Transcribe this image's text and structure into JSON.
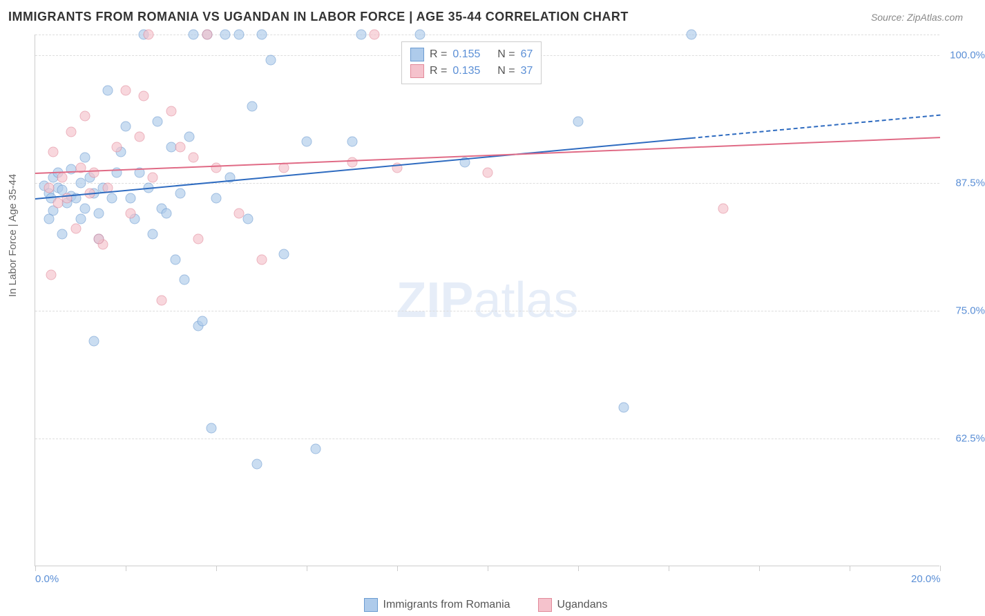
{
  "title": "IMMIGRANTS FROM ROMANIA VS UGANDAN IN LABOR FORCE | AGE 35-44 CORRELATION CHART",
  "source_prefix": "Source: ",
  "source_name": "ZipAtlas.com",
  "ylabel": "In Labor Force | Age 35-44",
  "watermark_bold": "ZIP",
  "watermark_rest": "atlas",
  "chart": {
    "type": "scatter",
    "xlim": [
      0,
      20
    ],
    "ylim": [
      50,
      102
    ],
    "xtick_labels": [
      {
        "x": 0,
        "label": "0.0%"
      },
      {
        "x": 20,
        "label": "20.0%"
      }
    ],
    "xtick_positions": [
      0,
      2,
      4,
      6,
      8,
      10,
      12,
      14,
      16,
      18,
      20
    ],
    "ytick_labels": [
      {
        "y": 62.5,
        "label": "62.5%"
      },
      {
        "y": 75.0,
        "label": "75.0%"
      },
      {
        "y": 87.5,
        "label": "87.5%"
      },
      {
        "y": 100.0,
        "label": "100.0%"
      }
    ],
    "grid_color": "#dddddd",
    "axis_color": "#cccccc",
    "background_color": "#ffffff",
    "marker_size": 15,
    "marker_opacity": 0.65,
    "series": [
      {
        "name": "Immigrants from Romania",
        "fill_color": "#aecbeb",
        "border_color": "#6b9bd1",
        "R": "0.155",
        "N": "67",
        "trend": {
          "x1": 0,
          "y1": 86.0,
          "x2": 20,
          "y2": 94.2,
          "color": "#2e6bc0",
          "dash_after_x": 14.5
        },
        "points": [
          [
            0.2,
            87.2
          ],
          [
            0.3,
            86.5
          ],
          [
            0.4,
            88.0
          ],
          [
            0.35,
            86.0
          ],
          [
            0.5,
            87.0
          ],
          [
            0.6,
            86.8
          ],
          [
            0.7,
            85.5
          ],
          [
            0.8,
            86.2
          ],
          [
            0.5,
            88.5
          ],
          [
            0.4,
            84.8
          ],
          [
            0.9,
            86.0
          ],
          [
            1.0,
            87.5
          ],
          [
            1.1,
            85.0
          ],
          [
            1.2,
            88.0
          ],
          [
            1.0,
            84.0
          ],
          [
            1.3,
            86.5
          ],
          [
            1.5,
            87.0
          ],
          [
            1.6,
            96.5
          ],
          [
            1.4,
            82.0
          ],
          [
            1.3,
            72.0
          ],
          [
            1.8,
            88.5
          ],
          [
            2.0,
            93.0
          ],
          [
            2.1,
            86.0
          ],
          [
            2.2,
            84.0
          ],
          [
            2.4,
            102.0
          ],
          [
            2.5,
            87.0
          ],
          [
            2.6,
            82.5
          ],
          [
            2.8,
            85.0
          ],
          [
            3.0,
            91.0
          ],
          [
            3.1,
            80.0
          ],
          [
            3.2,
            86.5
          ],
          [
            3.4,
            92.0
          ],
          [
            3.5,
            102.0
          ],
          [
            3.6,
            73.5
          ],
          [
            3.8,
            102.0
          ],
          [
            3.9,
            63.5
          ],
          [
            4.0,
            86.0
          ],
          [
            4.2,
            102.0
          ],
          [
            4.3,
            88.0
          ],
          [
            4.5,
            102.0
          ],
          [
            4.7,
            84.0
          ],
          [
            4.8,
            95.0
          ],
          [
            4.9,
            60.0
          ],
          [
            5.0,
            102.0
          ],
          [
            5.2,
            99.5
          ],
          [
            5.5,
            80.5
          ],
          [
            6.0,
            91.5
          ],
          [
            6.2,
            61.5
          ],
          [
            7.0,
            91.5
          ],
          [
            7.2,
            102.0
          ],
          [
            8.5,
            102.0
          ],
          [
            9.5,
            89.5
          ],
          [
            12.0,
            93.5
          ],
          [
            13.0,
            65.5
          ],
          [
            14.5,
            102.0
          ],
          [
            0.3,
            84.0
          ],
          [
            0.6,
            82.5
          ],
          [
            0.8,
            88.8
          ],
          [
            1.1,
            90.0
          ],
          [
            1.4,
            84.5
          ],
          [
            1.7,
            86.0
          ],
          [
            2.3,
            88.5
          ],
          [
            2.9,
            84.5
          ],
          [
            3.3,
            78.0
          ],
          [
            3.7,
            74.0
          ],
          [
            1.9,
            90.5
          ],
          [
            2.7,
            93.5
          ]
        ]
      },
      {
        "name": "Ugandans",
        "fill_color": "#f5c2cc",
        "border_color": "#e28a9a",
        "R": "0.135",
        "N": "37",
        "trend": {
          "x1": 0,
          "y1": 88.5,
          "x2": 20,
          "y2": 92.0,
          "color": "#e06a85",
          "dash_after_x": null
        },
        "points": [
          [
            0.3,
            87.0
          ],
          [
            0.4,
            90.5
          ],
          [
            0.5,
            85.5
          ],
          [
            0.6,
            88.0
          ],
          [
            0.7,
            86.0
          ],
          [
            0.8,
            92.5
          ],
          [
            0.9,
            83.0
          ],
          [
            1.0,
            89.0
          ],
          [
            1.1,
            94.0
          ],
          [
            1.2,
            86.5
          ],
          [
            1.3,
            88.5
          ],
          [
            1.5,
            81.5
          ],
          [
            1.6,
            87.0
          ],
          [
            1.8,
            91.0
          ],
          [
            2.0,
            96.5
          ],
          [
            2.1,
            84.5
          ],
          [
            2.3,
            92.0
          ],
          [
            2.5,
            102.0
          ],
          [
            2.6,
            88.0
          ],
          [
            2.8,
            76.0
          ],
          [
            3.0,
            94.5
          ],
          [
            3.2,
            91.0
          ],
          [
            3.5,
            90.0
          ],
          [
            3.8,
            102.0
          ],
          [
            4.0,
            89.0
          ],
          [
            4.5,
            84.5
          ],
          [
            5.0,
            80.0
          ],
          [
            5.5,
            89.0
          ],
          [
            7.0,
            89.5
          ],
          [
            7.5,
            102.0
          ],
          [
            8.0,
            89.0
          ],
          [
            10.0,
            88.5
          ],
          [
            15.2,
            85.0
          ],
          [
            0.35,
            78.5
          ],
          [
            1.4,
            82.0
          ],
          [
            2.4,
            96.0
          ],
          [
            3.6,
            82.0
          ]
        ]
      }
    ]
  },
  "bottom_legend": [
    {
      "label": "Immigrants from Romania",
      "fill": "#aecbeb",
      "border": "#6b9bd1"
    },
    {
      "label": "Ugandans",
      "fill": "#f5c2cc",
      "border": "#e28a9a"
    }
  ],
  "legend_box_labels": {
    "R": "R =",
    "N": "N ="
  }
}
